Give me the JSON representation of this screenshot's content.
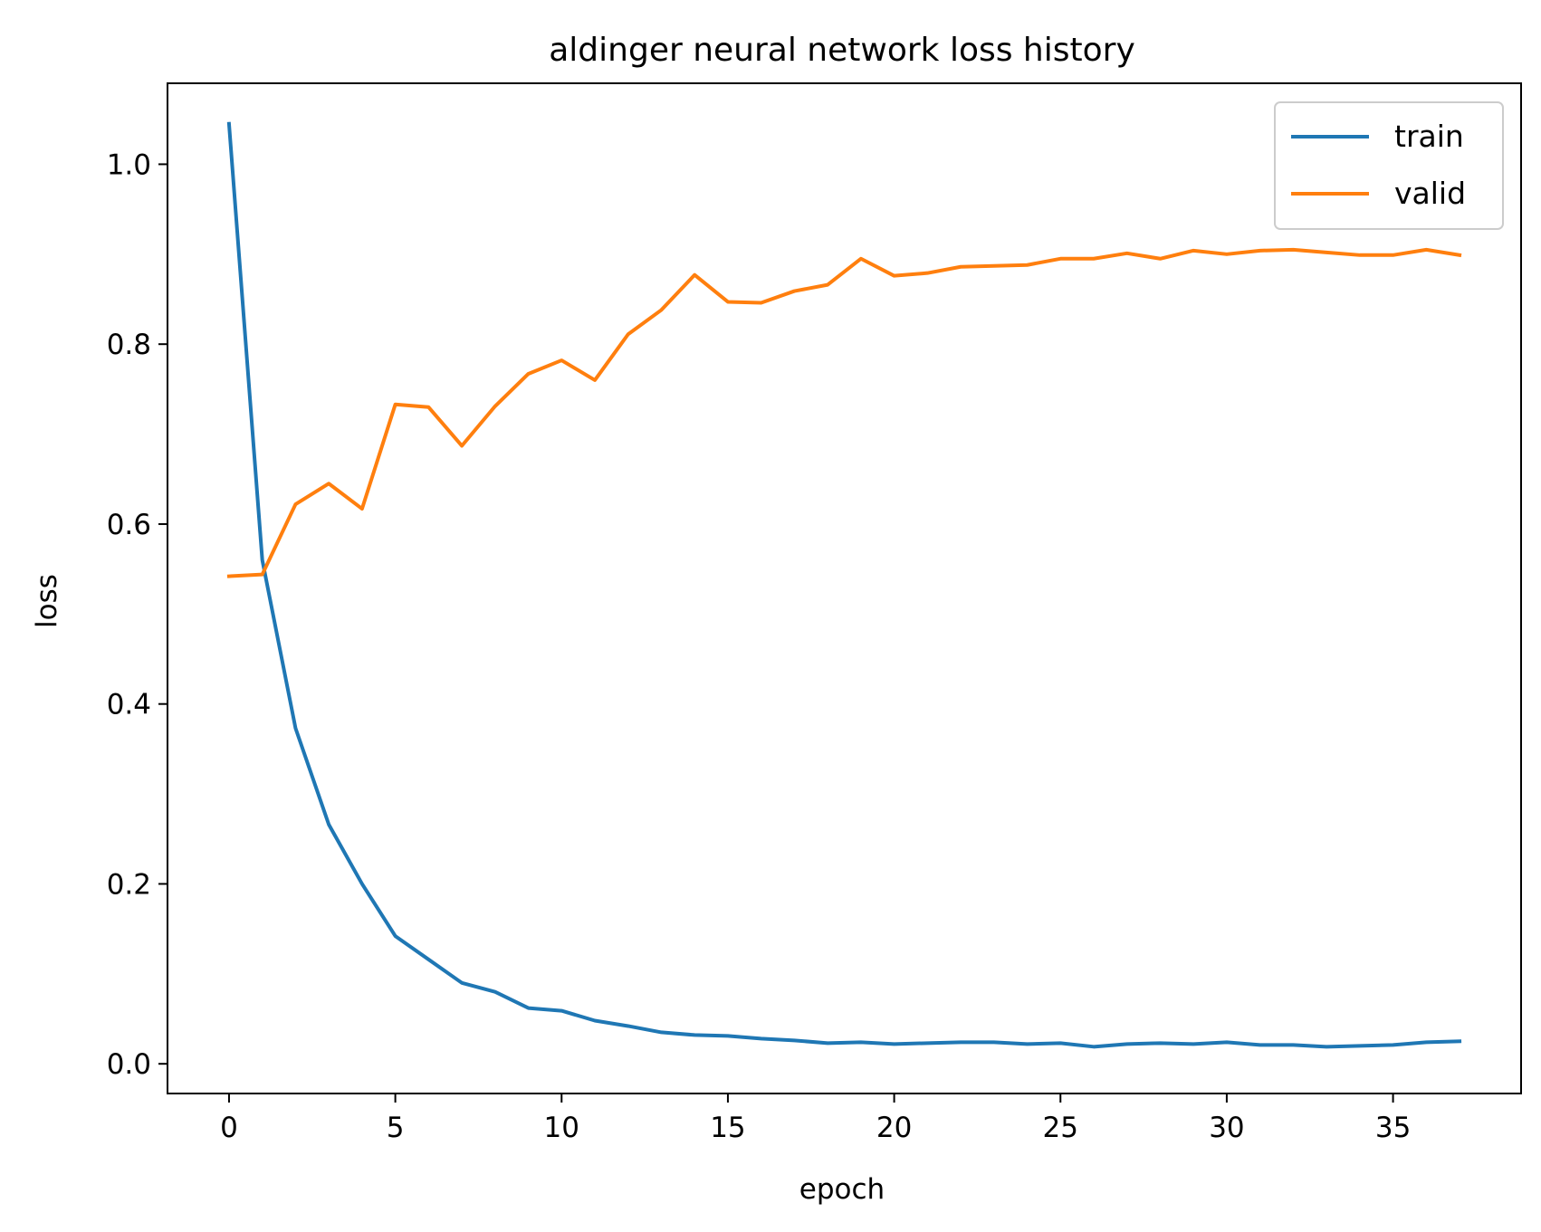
{
  "chart_data": {
    "type": "line",
    "title": "aldinger neural network loss history",
    "xlabel": "epoch",
    "ylabel": "loss",
    "xlim": [
      -1.85,
      38.85
    ],
    "ylim": [
      -0.033,
      1.09
    ],
    "x_ticks": [
      0,
      5,
      10,
      15,
      20,
      25,
      30,
      35
    ],
    "y_ticks": [
      0.0,
      0.2,
      0.4,
      0.6,
      0.8,
      1.0
    ],
    "grid": false,
    "legend_position": "top-right",
    "x": [
      0,
      1,
      2,
      3,
      4,
      5,
      6,
      7,
      8,
      9,
      10,
      11,
      12,
      13,
      14,
      15,
      16,
      17,
      18,
      19,
      20,
      21,
      22,
      23,
      24,
      25,
      26,
      27,
      28,
      29,
      30,
      31,
      32,
      33,
      34,
      35,
      36,
      37
    ],
    "series": [
      {
        "name": "train",
        "color": "#1f77b4",
        "values": [
          1.045,
          0.56,
          0.373,
          0.266,
          0.2,
          0.142,
          0.116,
          0.09,
          0.08,
          0.062,
          0.059,
          0.048,
          0.042,
          0.035,
          0.032,
          0.031,
          0.028,
          0.026,
          0.023,
          0.024,
          0.022,
          0.023,
          0.024,
          0.024,
          0.022,
          0.023,
          0.019,
          0.022,
          0.023,
          0.022,
          0.024,
          0.021,
          0.021,
          0.019,
          0.02,
          0.021,
          0.024,
          0.025
        ]
      },
      {
        "name": "valid",
        "color": "#ff7f0e",
        "values": [
          0.542,
          0.544,
          0.622,
          0.645,
          0.617,
          0.733,
          0.73,
          0.687,
          0.731,
          0.767,
          0.782,
          0.76,
          0.811,
          0.838,
          0.877,
          0.847,
          0.846,
          0.859,
          0.866,
          0.895,
          0.876,
          0.879,
          0.886,
          0.887,
          0.888,
          0.895,
          0.895,
          0.901,
          0.895,
          0.904,
          0.9,
          0.904,
          0.905,
          0.902,
          0.899,
          0.899,
          0.905,
          0.899
        ]
      }
    ]
  }
}
